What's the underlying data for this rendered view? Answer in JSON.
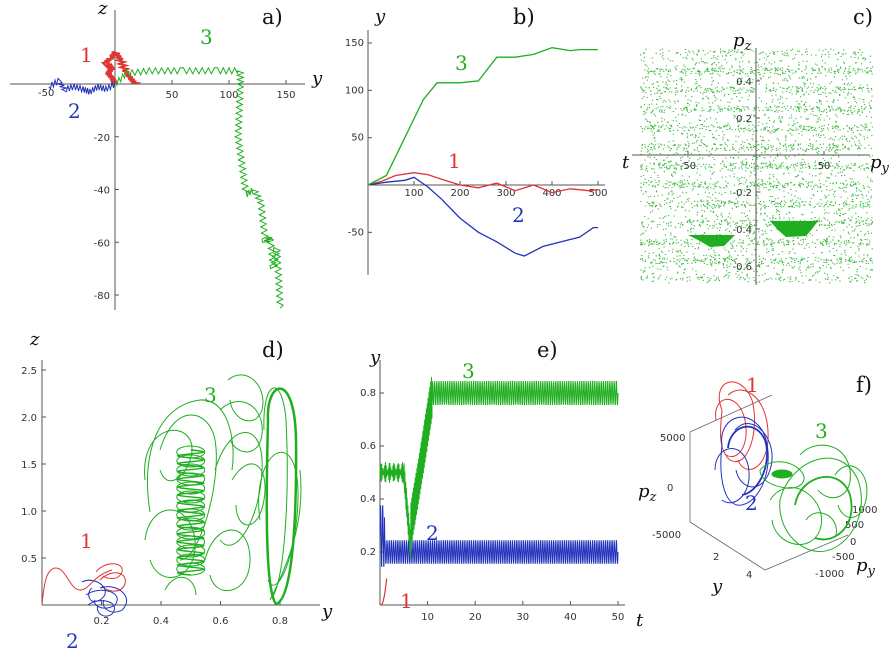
{
  "colors": {
    "s1": "#e23333",
    "s2": "#2233bb",
    "s3": "#1fae1f",
    "axis": "#555555"
  },
  "chart_data": [
    {
      "panel": "a)",
      "type": "line",
      "xlabel": "y",
      "ylabel": "z",
      "xlim": [
        -60,
        165
      ],
      "ylim": [
        -88,
        9
      ],
      "xticks": [
        "50",
        "100",
        "150"
      ],
      "xtick_values": [
        50,
        100,
        150
      ],
      "yticks": [
        "-20",
        "-40",
        "-60",
        "-80"
      ],
      "ytick_values": [
        -20,
        -40,
        -60,
        -80
      ],
      "clipped_tick": "-50",
      "series": [
        {
          "name": "1",
          "color": "#e23333",
          "x": [
            0,
            -2,
            -6,
            -3,
            -8,
            -4,
            1,
            5,
            9,
            14,
            18
          ],
          "y": [
            0,
            2,
            4,
            6,
            8,
            10,
            12,
            9,
            5,
            2,
            0
          ]
        },
        {
          "name": "2",
          "color": "#2233bb",
          "x": [
            0,
            -8,
            -15,
            -22,
            -28,
            -36,
            -44,
            -50,
            -58
          ],
          "y": [
            0,
            -2,
            -1,
            -3,
            -2,
            -1,
            -2,
            1,
            -1
          ]
        },
        {
          "name": "3",
          "color": "#1fae1f",
          "x": [
            0,
            10,
            30,
            60,
            90,
            110,
            110,
            108,
            115,
            122,
            128,
            132,
            136,
            139,
            142,
            145
          ],
          "y": [
            0,
            4,
            5,
            5,
            5,
            5,
            0,
            -20,
            -42,
            -40,
            -45,
            -60,
            -58,
            -70,
            -62,
            -85
          ]
        }
      ]
    },
    {
      "panel": "b)",
      "type": "line",
      "xlabel": "t",
      "ylabel": "y",
      "xlim": [
        0,
        510
      ],
      "ylim": [
        -82,
        158
      ],
      "xticks": [
        "100",
        "200",
        "300",
        "400",
        "500"
      ],
      "xtick_values": [
        100,
        200,
        300,
        400,
        500
      ],
      "yticks": [
        "150",
        "100",
        "50",
        "-50"
      ],
      "ytick_values": [
        150,
        100,
        50,
        -50
      ],
      "series": [
        {
          "name": "1",
          "color": "#e23333",
          "x": [
            0,
            30,
            60,
            100,
            130,
            160,
            200,
            240,
            280,
            320,
            360,
            400,
            440,
            480,
            500
          ],
          "y": [
            0,
            4,
            10,
            13,
            11,
            6,
            0,
            -3,
            2,
            -6,
            0,
            -8,
            -4,
            -6,
            -5
          ]
        },
        {
          "name": "2",
          "color": "#2233bb",
          "x": [
            0,
            40,
            80,
            100,
            130,
            160,
            200,
            240,
            280,
            320,
            340,
            380,
            420,
            460,
            490,
            500
          ],
          "y": [
            0,
            3,
            5,
            8,
            -2,
            -15,
            -35,
            -50,
            -60,
            -72,
            -75,
            -65,
            -60,
            -55,
            -45,
            -45
          ]
        },
        {
          "name": "3",
          "color": "#1fae1f",
          "x": [
            0,
            40,
            80,
            120,
            150,
            180,
            200,
            240,
            280,
            320,
            360,
            400,
            440,
            460,
            500
          ],
          "y": [
            0,
            10,
            50,
            90,
            108,
            108,
            108,
            110,
            135,
            135,
            138,
            145,
            142,
            143,
            143
          ]
        }
      ]
    },
    {
      "panel": "c)",
      "type": "scatter",
      "xlabel": "p_y",
      "ylabel": "p_z",
      "xlim": [
        -95,
        80
      ],
      "ylim": [
        -0.68,
        0.52
      ],
      "xticks": [
        "-50",
        "50"
      ],
      "xtick_values": [
        -50,
        50
      ],
      "yticks": [
        "0.4",
        "0.2",
        "-0.2",
        "-0.4",
        "-0.6"
      ],
      "ytick_values": [
        0.4,
        0.2,
        -0.2,
        -0.4,
        -0.6
      ],
      "series": [
        {
          "name": "3",
          "color": "#1fae1f"
        }
      ]
    },
    {
      "panel": "d)",
      "type": "line",
      "xlabel": "y",
      "ylabel": "z",
      "xlim": [
        0,
        0.9
      ],
      "ylim": [
        0,
        2.5
      ],
      "xticks": [
        "0.2",
        "0.4",
        "0.6",
        "0.8"
      ],
      "xtick_values": [
        0.2,
        0.4,
        0.6,
        0.8
      ],
      "yticks": [
        "2.5",
        "2.0",
        "1.5",
        "1.0",
        "0.5"
      ],
      "ytick_values": [
        2.5,
        2.0,
        1.5,
        1.0,
        0.5
      ],
      "series": [
        {
          "name": "1",
          "color": "#e23333"
        },
        {
          "name": "2",
          "color": "#2233bb"
        },
        {
          "name": "3",
          "color": "#1fae1f"
        }
      ]
    },
    {
      "panel": "e)",
      "type": "line",
      "xlabel": "t",
      "ylabel": "y",
      "xlim": [
        0,
        50
      ],
      "ylim": [
        0,
        0.88
      ],
      "xticks": [
        "10",
        "20",
        "30",
        "40",
        "50"
      ],
      "xtick_values": [
        10,
        20,
        30,
        40,
        50
      ],
      "yticks": [
        "0.8",
        "0.6",
        "0.4",
        "0.2"
      ],
      "ytick_values": [
        0.8,
        0.6,
        0.4,
        0.2
      ],
      "series": [
        {
          "name": "1",
          "color": "#e23333"
        },
        {
          "name": "2",
          "color": "#2233bb",
          "center": 0.2,
          "amplitude": 0.045
        },
        {
          "name": "3",
          "color": "#1fae1f",
          "center": 0.8,
          "amplitude": 0.045
        }
      ]
    },
    {
      "panel": "f)",
      "type": "line",
      "xlabel": "y",
      "ylabel": "p_z",
      "zlabel": "p_y",
      "yticks": [
        "5000",
        "0",
        "-5000"
      ],
      "xticks": [
        "2",
        "4"
      ],
      "zticks": [
        "1000",
        "500",
        "0",
        "-500",
        "-1000"
      ],
      "series": [
        {
          "name": "1",
          "color": "#e23333"
        },
        {
          "name": "2",
          "color": "#2233bb"
        },
        {
          "name": "3",
          "color": "#1fae1f"
        }
      ]
    }
  ]
}
